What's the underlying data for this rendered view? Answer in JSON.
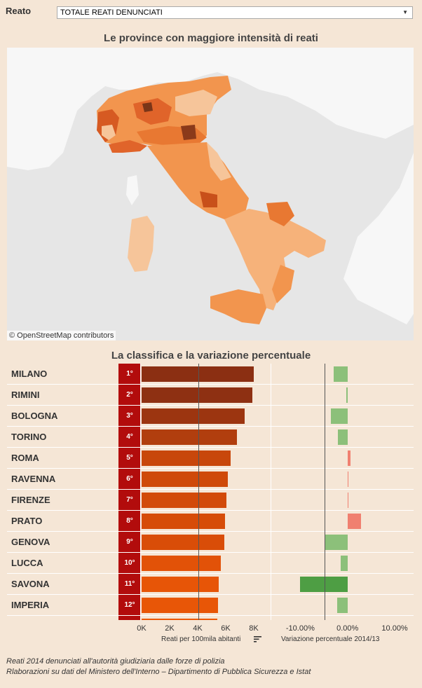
{
  "filter": {
    "label": "Reato",
    "selected": "TOTALE REATI DENUNCIATI",
    "caret_icon": "chevron-down-icon"
  },
  "map": {
    "title": "Le province con maggiore intensità di reati",
    "attribution": "© OpenStreetMap contributors",
    "colors": {
      "sea": "#e6e6e6",
      "land": "#f7f7f7",
      "low": "#f6c59a",
      "mid": "#f2954e",
      "high": "#e0642a",
      "max": "#8b3a1a"
    }
  },
  "ranking": {
    "title": "La classifica e la variazione percentuale",
    "rows": [
      {
        "province": "MILANO",
        "rank": "1°",
        "rate": 8000,
        "change": -0.03,
        "color": "#8b2f12"
      },
      {
        "province": "RIMINI",
        "rank": "2°",
        "rate": 7900,
        "change": -0.003,
        "color": "#8e3012"
      },
      {
        "province": "BOLOGNA",
        "rank": "3°",
        "rate": 7350,
        "change": -0.035,
        "color": "#9c3510"
      },
      {
        "province": "TORINO",
        "rank": "4°",
        "rate": 6800,
        "change": -0.02,
        "color": "#b13e0e"
      },
      {
        "province": "ROMA",
        "rank": "5°",
        "rate": 6350,
        "change": 0.007,
        "color": "#c8470b"
      },
      {
        "province": "RAVENNA",
        "rank": "6°",
        "rate": 6150,
        "change": 0.0,
        "color": "#cf4909"
      },
      {
        "province": "FIRENZE",
        "rank": "7°",
        "rate": 6050,
        "change": 0.001,
        "color": "#d24a09"
      },
      {
        "province": "PRATO",
        "rank": "8°",
        "rate": 5950,
        "change": 0.028,
        "color": "#d64c08"
      },
      {
        "province": "GENOVA",
        "rank": "9°",
        "rate": 5900,
        "change": -0.048,
        "color": "#d94d08"
      },
      {
        "province": "LUCCA",
        "rank": "10°",
        "rate": 5650,
        "change": -0.015,
        "color": "#e25208"
      },
      {
        "province": "SAVONA",
        "rank": "11°",
        "rate": 5500,
        "change": -0.1,
        "color": "#e75507"
      },
      {
        "province": "IMPERIA",
        "rank": "12°",
        "rate": 5450,
        "change": -0.022,
        "color": "#e85607"
      }
    ],
    "rate_axis": {
      "ticks": [
        "0K",
        "2K",
        "4K",
        "6K",
        "8K"
      ],
      "title": "Reati per 100mila abitanti",
      "max": 10000,
      "reference": 4030,
      "sort_icon": "sort-icon"
    },
    "change_axis": {
      "ticks": [
        "-10.00%",
        "0.00%",
        "10.00%"
      ],
      "title": "Variazione percentuale 2014/13",
      "min": -0.16,
      "max": 0.14,
      "reference": -0.048
    },
    "colors": {
      "rank_bg": "#b20c0c",
      "negative": "#8cc07a",
      "negative_strong": "#4e9e44",
      "positive": "#f08070",
      "reference_line": "#555555"
    }
  },
  "footer": {
    "line1": "Reati 2014 denunciati all'autorità giudiziaria dalle forze di polizia",
    "line2": "Rlaborazioni su dati del Ministero dell'Interno – Dipartimento di Pubblica Sicurezza e Istat"
  }
}
